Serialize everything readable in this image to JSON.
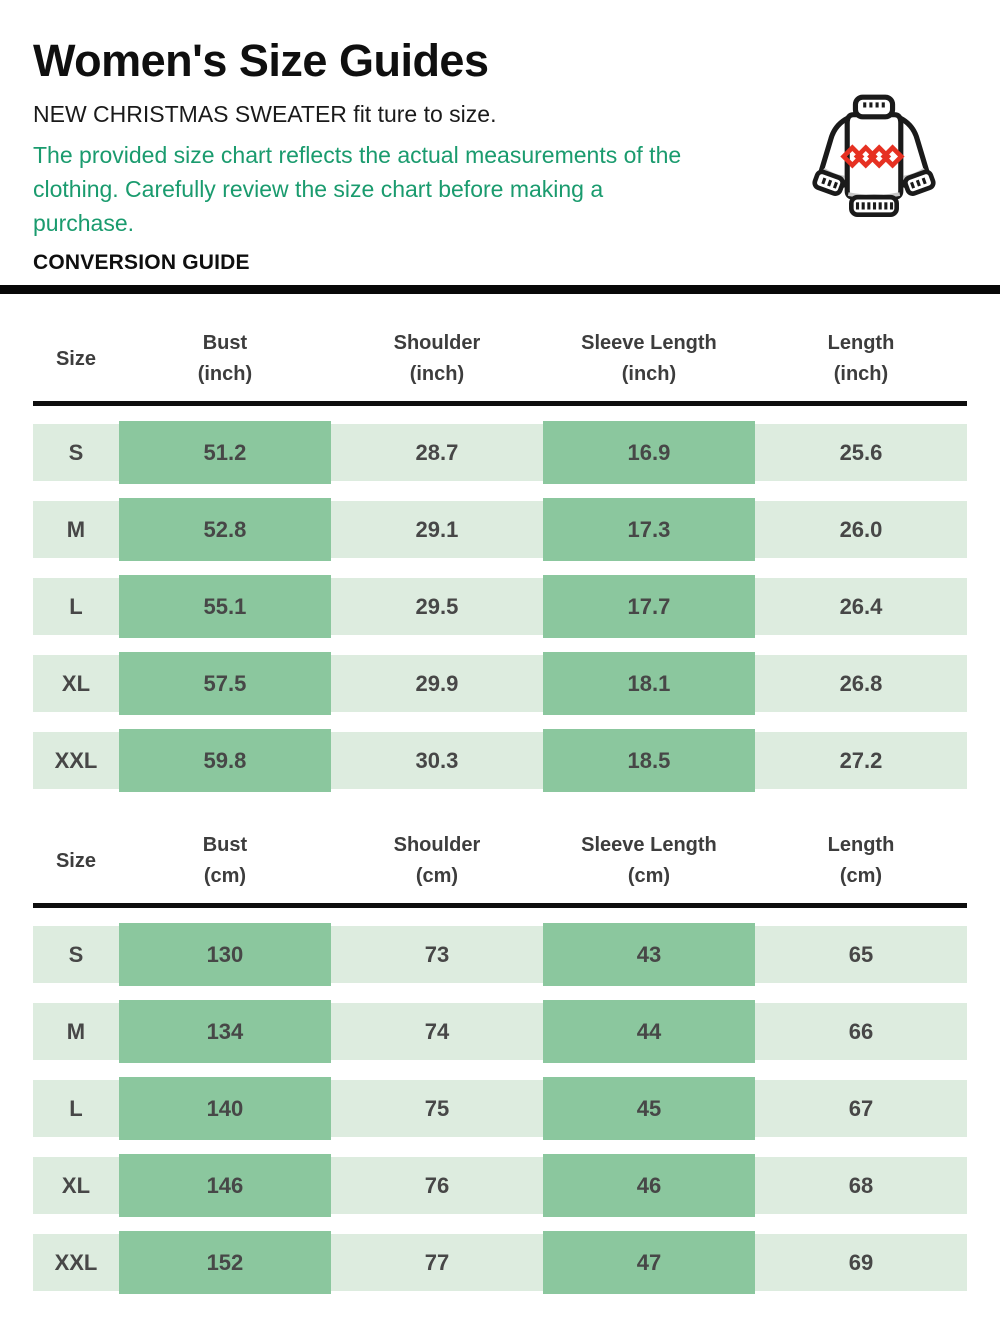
{
  "page": {
    "title": "Women's Size Guides",
    "subtitle": "NEW CHRISTMAS SWEATER fit ture to size.",
    "note": "The provided size chart reflects the actual measurements of the clothing. Carefully review the size chart before making a purchase.",
    "section_label": "CONVERSION GUIDE"
  },
  "icon": {
    "name": "christmas-sweater-icon",
    "outline_color": "#1a1a1a",
    "pattern_color": "#e63122",
    "shadow_color": "#c6c6c6"
  },
  "colors": {
    "accent": "#1a9b6e",
    "cell_dark": "#8bc79e",
    "cell_light": "#ddecdf",
    "divider": "#070707",
    "cell_text": "#474747",
    "header_text": "#3d3d3d"
  },
  "tables": [
    {
      "name": "size-table-inches",
      "unit": "inch",
      "shaded_columns": [
        1,
        3
      ],
      "columns": [
        {
          "label": "Size",
          "unit": ""
        },
        {
          "label": "Bust",
          "unit": "(inch)"
        },
        {
          "label": "Shoulder",
          "unit": "(inch)"
        },
        {
          "label": "Sleeve Length",
          "unit": "(inch)"
        },
        {
          "label": "Length",
          "unit": "(inch)"
        }
      ],
      "rows": [
        {
          "size": "S",
          "values": [
            "51.2",
            "28.7",
            "16.9",
            "25.6"
          ]
        },
        {
          "size": "M",
          "values": [
            "52.8",
            "29.1",
            "17.3",
            "26.0"
          ]
        },
        {
          "size": "L",
          "values": [
            "55.1",
            "29.5",
            "17.7",
            "26.4"
          ]
        },
        {
          "size": "XL",
          "values": [
            "57.5",
            "29.9",
            "18.1",
            "26.8"
          ]
        },
        {
          "size": "XXL",
          "values": [
            "59.8",
            "30.3",
            "18.5",
            "27.2"
          ]
        }
      ]
    },
    {
      "name": "size-table-cm",
      "unit": "cm",
      "shaded_columns": [
        1,
        3
      ],
      "columns": [
        {
          "label": "Size",
          "unit": ""
        },
        {
          "label": "Bust",
          "unit": "(cm)"
        },
        {
          "label": "Shoulder",
          "unit": "(cm)"
        },
        {
          "label": "Sleeve Length",
          "unit": "(cm)"
        },
        {
          "label": "Length",
          "unit": "(cm)"
        }
      ],
      "rows": [
        {
          "size": "S",
          "values": [
            "130",
            "73",
            "43",
            "65"
          ]
        },
        {
          "size": "M",
          "values": [
            "134",
            "74",
            "44",
            "66"
          ]
        },
        {
          "size": "L",
          "values": [
            "140",
            "75",
            "45",
            "67"
          ]
        },
        {
          "size": "XL",
          "values": [
            "146",
            "76",
            "46",
            "68"
          ]
        },
        {
          "size": "XXL",
          "values": [
            "152",
            "77",
            "47",
            "69"
          ]
        }
      ]
    }
  ]
}
